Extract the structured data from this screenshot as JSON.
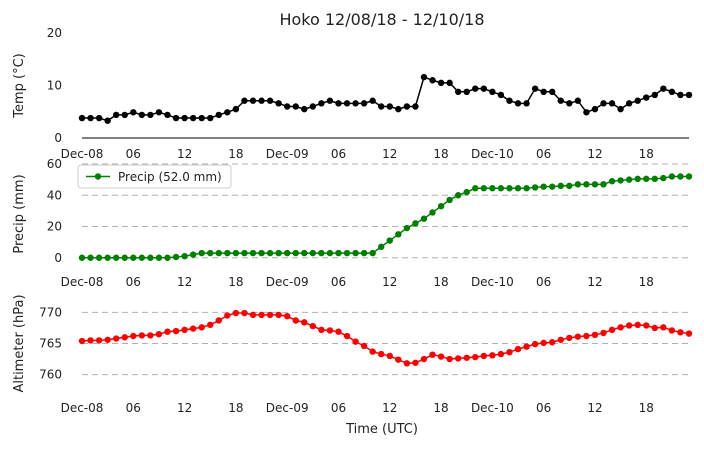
{
  "chart_data": {
    "type": "line",
    "title": "Hoko 12/08/18 - 12/10/18",
    "xlabel": "Time (UTC)",
    "x_hours": [
      0,
      1,
      2,
      3,
      4,
      5,
      6,
      7,
      8,
      9,
      10,
      11,
      12,
      13,
      14,
      15,
      16,
      17,
      18,
      19,
      20,
      21,
      22,
      23,
      24,
      25,
      26,
      27,
      28,
      29,
      30,
      31,
      32,
      33,
      34,
      35,
      36,
      37,
      38,
      39,
      40,
      41,
      42,
      43,
      44,
      45,
      46,
      47,
      48,
      49,
      50,
      51,
      52,
      53,
      54,
      55,
      56,
      57,
      58,
      59,
      60,
      61,
      62,
      63,
      64,
      65,
      66,
      67,
      68,
      69,
      70,
      71
    ],
    "xlim": [
      0,
      71
    ],
    "xticks": [
      {
        "hour": 0,
        "label": "Dec-08"
      },
      {
        "hour": 6,
        "label": "06"
      },
      {
        "hour": 12,
        "label": "12"
      },
      {
        "hour": 18,
        "label": "18"
      },
      {
        "hour": 24,
        "label": "Dec-09"
      },
      {
        "hour": 30,
        "label": "06"
      },
      {
        "hour": 36,
        "label": "12"
      },
      {
        "hour": 42,
        "label": "18"
      },
      {
        "hour": 48,
        "label": "Dec-10"
      },
      {
        "hour": 54,
        "label": "06"
      },
      {
        "hour": 60,
        "label": "12"
      },
      {
        "hour": 66,
        "label": "18"
      }
    ],
    "panels": [
      {
        "key": "temp",
        "ylabel": "Temp (°C)",
        "ylim": [
          0,
          20
        ],
        "yticks": [
          0,
          10,
          20
        ],
        "grid": false,
        "color": "#000000",
        "series": [
          {
            "name": "Temp",
            "values": [
              3.8,
              3.8,
              3.8,
              3.3,
              4.4,
              4.4,
              4.9,
              4.4,
              4.4,
              4.9,
              4.4,
              3.8,
              3.8,
              3.8,
              3.8,
              3.8,
              4.4,
              4.9,
              5.5,
              7.1,
              7.1,
              7.1,
              7.1,
              6.6,
              6.0,
              6.0,
              5.5,
              6.0,
              6.6,
              7.1,
              6.6,
              6.6,
              6.6,
              6.6,
              7.1,
              6.0,
              6.0,
              5.5,
              6.0,
              6.0,
              11.6,
              11.0,
              10.5,
              10.5,
              8.8,
              8.8,
              9.4,
              9.4,
              8.8,
              8.2,
              7.1,
              6.6,
              6.6,
              9.4,
              8.8,
              8.8,
              7.1,
              6.6,
              7.1,
              4.9,
              5.5,
              6.6,
              6.6,
              5.5,
              6.6,
              7.1,
              7.7,
              8.2,
              9.4,
              8.8,
              8.2,
              8.2
            ]
          }
        ]
      },
      {
        "key": "precip",
        "ylabel": "Precip (mm)",
        "ylim": [
          -4,
          60
        ],
        "yticks": [
          0,
          20,
          40,
          60
        ],
        "grid": true,
        "color": "#008000",
        "legend": "Precip (52.0 mm)",
        "legend_position": "top-left",
        "series": [
          {
            "name": "Precip (52.0 mm)",
            "values": [
              0,
              0,
              0,
              0,
              0,
              0,
              0,
              0,
              0,
              0,
              0,
              0.5,
              1,
              2,
              3,
              3,
              3,
              3,
              3,
              3,
              3,
              3,
              3,
              3,
              3,
              3,
              3,
              3,
              3,
              3,
              3,
              3,
              3,
              3,
              3,
              7,
              11,
              15,
              19,
              22,
              25,
              29,
              33,
              37,
              40,
              42,
              44.5,
              44.5,
              44.5,
              44.5,
              44.5,
              44.5,
              44.5,
              45,
              45.5,
              45.5,
              46,
              46,
              47,
              47,
              47,
              47,
              49,
              49.5,
              50,
              50.5,
              50.5,
              50.5,
              51,
              52,
              52,
              52
            ]
          }
        ]
      },
      {
        "key": "altimeter",
        "ylabel": "Altimeter (hPa)",
        "ylim": [
          758,
          772
        ],
        "yticks": [
          760,
          765,
          770
        ],
        "grid": true,
        "color": "#ff0000",
        "series": [
          {
            "name": "Altimeter",
            "values": [
              765.4,
              765.5,
              765.5,
              765.6,
              765.8,
              766.0,
              766.2,
              766.3,
              766.3,
              766.5,
              766.9,
              767.0,
              767.2,
              767.4,
              767.6,
              768.0,
              768.7,
              769.5,
              769.9,
              769.9,
              769.6,
              769.6,
              769.6,
              769.6,
              769.4,
              768.7,
              768.4,
              767.8,
              767.2,
              767.1,
              766.9,
              766.2,
              765.3,
              764.6,
              763.7,
              763.3,
              763.0,
              762.4,
              761.8,
              761.9,
              762.5,
              763.2,
              762.9,
              762.5,
              762.6,
              762.7,
              762.8,
              763.0,
              763.1,
              763.3,
              763.6,
              764.1,
              764.5,
              764.9,
              765.1,
              765.2,
              765.6,
              765.9,
              766.1,
              766.2,
              766.4,
              766.7,
              767.2,
              767.6,
              767.9,
              768.0,
              767.9,
              767.5,
              767.6,
              767.1,
              766.8,
              766.6
            ]
          }
        ]
      }
    ]
  }
}
